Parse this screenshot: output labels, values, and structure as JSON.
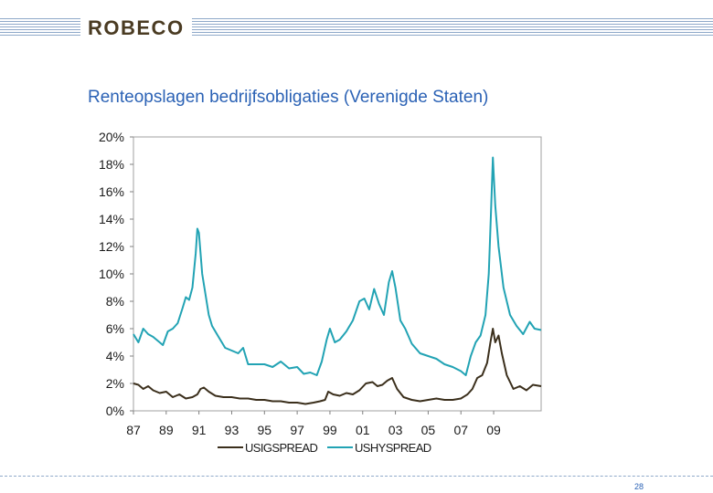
{
  "header": {
    "logo": "ROBECO"
  },
  "footer": {
    "page_number": "28"
  },
  "colors": {
    "ig": "#3b2f1c",
    "hy": "#22a3b4",
    "title": "#2b62b5",
    "brand": "#4a3b22"
  },
  "chart_data": {
    "type": "line",
    "title": "Renteopslagen bedrijfsobligaties (Verenigde Staten)",
    "xlim": [
      1987,
      2011.9
    ],
    "ylim": [
      0,
      20
    ],
    "x_ticks": [
      "87",
      "89",
      "91",
      "93",
      "95",
      "97",
      "99",
      "01",
      "03",
      "05",
      "07",
      "09"
    ],
    "x_tick_values": [
      1987,
      1989,
      1991,
      1993,
      1995,
      1997,
      1999,
      2001,
      2003,
      2005,
      2007,
      2009
    ],
    "y_ticks": [
      "0%",
      "2%",
      "4%",
      "6%",
      "8%",
      "10%",
      "12%",
      "14%",
      "16%",
      "18%",
      "20%"
    ],
    "y_tick_values": [
      0,
      2,
      4,
      6,
      8,
      10,
      12,
      14,
      16,
      18,
      20
    ],
    "legend_position": "bottom",
    "series": [
      {
        "name": "USIGSPREAD",
        "x": [
          1987.0,
          1987.3,
          1987.6,
          1987.9,
          1988.2,
          1988.6,
          1989.0,
          1989.4,
          1989.8,
          1990.2,
          1990.6,
          1990.9,
          1991.1,
          1991.3,
          1991.6,
          1992.0,
          1992.5,
          1993.0,
          1993.5,
          1994.0,
          1994.5,
          1995.0,
          1995.5,
          1996.0,
          1996.5,
          1997.0,
          1997.5,
          1998.0,
          1998.4,
          1998.7,
          1998.9,
          1999.2,
          1999.6,
          2000.0,
          2000.4,
          2000.8,
          2001.2,
          2001.6,
          2001.9,
          2002.2,
          2002.5,
          2002.8,
          2003.1,
          2003.5,
          2004.0,
          2004.5,
          2005.0,
          2005.5,
          2006.0,
          2006.5,
          2007.0,
          2007.4,
          2007.7,
          2008.0,
          2008.3,
          2008.6,
          2008.8,
          2008.95,
          2009.1,
          2009.3,
          2009.5,
          2009.8,
          2010.2,
          2010.6,
          2011.0,
          2011.4,
          2011.9
        ],
        "values": [
          2.0,
          1.9,
          1.6,
          1.8,
          1.5,
          1.3,
          1.4,
          1.0,
          1.2,
          0.9,
          1.0,
          1.2,
          1.6,
          1.7,
          1.4,
          1.1,
          1.0,
          1.0,
          0.9,
          0.9,
          0.8,
          0.8,
          0.7,
          0.7,
          0.6,
          0.6,
          0.5,
          0.6,
          0.7,
          0.8,
          1.4,
          1.2,
          1.1,
          1.3,
          1.2,
          1.5,
          2.0,
          2.1,
          1.8,
          1.9,
          2.2,
          2.4,
          1.6,
          1.0,
          0.8,
          0.7,
          0.8,
          0.9,
          0.8,
          0.8,
          0.9,
          1.2,
          1.6,
          2.4,
          2.6,
          3.5,
          5.0,
          6.0,
          5.0,
          5.5,
          4.2,
          2.6,
          1.6,
          1.8,
          1.5,
          1.9,
          1.8
        ]
      },
      {
        "name": "USHYSPREAD",
        "x": [
          1987.0,
          1987.3,
          1987.6,
          1987.9,
          1988.2,
          1988.5,
          1988.8,
          1989.1,
          1989.4,
          1989.7,
          1990.0,
          1990.2,
          1990.4,
          1990.6,
          1990.8,
          1990.9,
          1991.0,
          1991.2,
          1991.4,
          1991.6,
          1991.8,
          1992.2,
          1992.6,
          1993.0,
          1993.4,
          1993.7,
          1994.0,
          1994.5,
          1995.0,
          1995.5,
          1996.0,
          1996.5,
          1997.0,
          1997.4,
          1997.8,
          1998.2,
          1998.5,
          1998.8,
          1999.0,
          1999.3,
          1999.6,
          2000.0,
          2000.4,
          2000.8,
          2001.1,
          2001.4,
          2001.7,
          2002.0,
          2002.3,
          2002.6,
          2002.8,
          2003.0,
          2003.3,
          2003.6,
          2004.0,
          2004.5,
          2005.0,
          2005.5,
          2006.0,
          2006.5,
          2007.0,
          2007.3,
          2007.6,
          2007.9,
          2008.2,
          2008.5,
          2008.7,
          2008.85,
          2008.95,
          2009.1,
          2009.3,
          2009.6,
          2010.0,
          2010.4,
          2010.8,
          2011.2,
          2011.5,
          2011.9
        ],
        "values": [
          5.6,
          5.0,
          6.0,
          5.6,
          5.4,
          5.1,
          4.8,
          5.8,
          6.0,
          6.4,
          7.5,
          8.3,
          8.1,
          9.0,
          11.5,
          13.3,
          13.0,
          10.0,
          8.5,
          7.0,
          6.2,
          5.4,
          4.6,
          4.4,
          4.2,
          4.6,
          3.4,
          3.4,
          3.4,
          3.2,
          3.6,
          3.1,
          3.2,
          2.7,
          2.8,
          2.6,
          3.6,
          5.2,
          6.0,
          5.0,
          5.2,
          5.8,
          6.6,
          8.0,
          8.2,
          7.4,
          8.9,
          7.8,
          7.0,
          9.4,
          10.2,
          9.0,
          6.6,
          6.0,
          4.9,
          4.2,
          4.0,
          3.8,
          3.4,
          3.2,
          2.9,
          2.6,
          4.0,
          5.0,
          5.5,
          7.0,
          10.0,
          15.0,
          18.5,
          15.0,
          12.0,
          9.0,
          7.0,
          6.2,
          5.6,
          6.5,
          6.0,
          5.9
        ]
      }
    ]
  }
}
